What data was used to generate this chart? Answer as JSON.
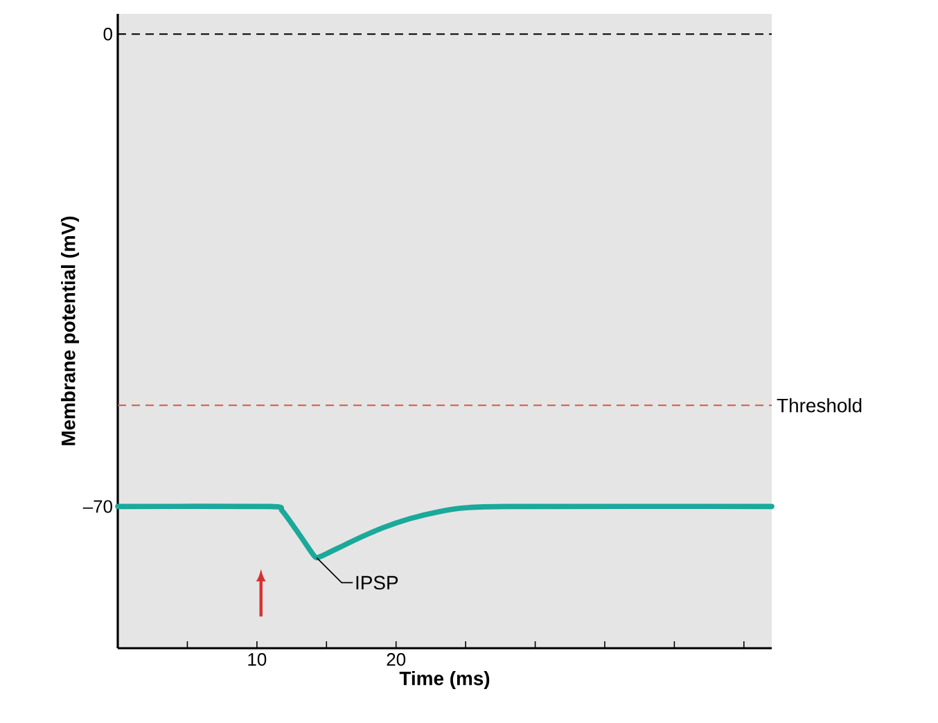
{
  "chart_data": {
    "type": "line",
    "xlabel": "Time (ms)",
    "ylabel": "Membrane potential (mV)",
    "xlim": [
      0,
      47
    ],
    "ylim": [
      -91,
      3
    ],
    "xticks": [
      {
        "value": 5,
        "label": null
      },
      10,
      {
        "value": 15,
        "label": null
      },
      20,
      {
        "value": 25,
        "label": null
      },
      {
        "value": 30,
        "label": null
      },
      {
        "value": 35,
        "label": null
      },
      {
        "value": 40,
        "label": null
      },
      {
        "value": 45,
        "label": null
      }
    ],
    "yticks": [
      0,
      {
        "value": -70,
        "label": "–70"
      }
    ],
    "series": [
      {
        "color": "#1aa99a",
        "x": [
          0,
          11,
          11.8,
          13,
          14,
          14.3,
          15,
          17,
          19,
          21,
          23,
          25,
          28,
          47
        ],
        "values": [
          -70,
          -70,
          -70.6,
          -74,
          -77,
          -77.6,
          -77,
          -75,
          -73.2,
          -71.8,
          -70.8,
          -70.2,
          -70,
          -70
        ]
      }
    ],
    "ref_lines": [
      {
        "axis": "y",
        "value": 0,
        "color": "#000000",
        "line_style": "dashed"
      },
      {
        "axis": "y",
        "value": -55,
        "label": "Threshold",
        "color": "#d9534f",
        "line_style": "dashed"
      }
    ],
    "annotations": [
      {
        "text": "IPSP",
        "x": 14.3,
        "y": -77.6
      }
    ],
    "marker": "none",
    "line_style": "solid"
  }
}
